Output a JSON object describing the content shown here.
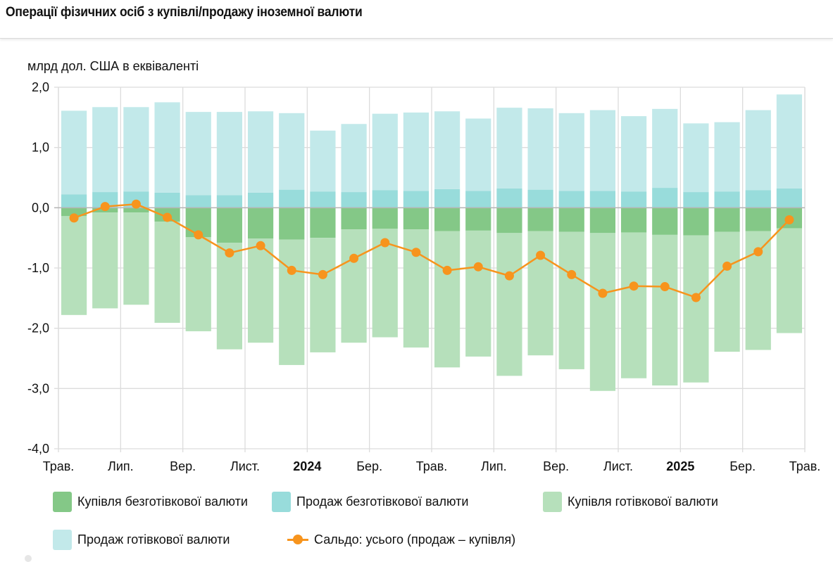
{
  "header": {
    "title": "Операції фізичних осіб з купівлі/продажу іноземної валюти"
  },
  "chart_data": {
    "type": "bar",
    "subtype": "stacked bar with line",
    "title": "Операції фізичних осіб з купівлі/продажу іноземної валюти",
    "ylabel": "млрд дол. США в еквіваленті",
    "xlabel": "",
    "ylim": [
      -4.0,
      2.0
    ],
    "yticks": [
      2.0,
      1.0,
      0.0,
      -1.0,
      -2.0,
      -3.0,
      -4.0
    ],
    "ytick_labels": [
      "2,0",
      "1,0",
      "0,0",
      "-1,0",
      "-2,0",
      "-3,0",
      "-4,0"
    ],
    "grid": true,
    "legend_position": "bottom",
    "categories": [
      "2023-05",
      "2023-06",
      "2023-07",
      "2023-08",
      "2023-09",
      "2023-10",
      "2023-11",
      "2023-12",
      "2024-01",
      "2024-02",
      "2024-03",
      "2024-04",
      "2024-05",
      "2024-06",
      "2024-07",
      "2024-08",
      "2024-09",
      "2024-10",
      "2024-11",
      "2024-12",
      "2025-01",
      "2025-02",
      "2025-03",
      "2025-04"
    ],
    "xtick_labels": [
      {
        "label": "Трав.",
        "bold": false
      },
      {
        "label": "Лип.",
        "bold": false
      },
      {
        "label": "Вер.",
        "bold": false
      },
      {
        "label": "Лист.",
        "bold": false
      },
      {
        "label": "2024",
        "bold": true
      },
      {
        "label": "Бер.",
        "bold": false
      },
      {
        "label": "Трав.",
        "bold": false
      },
      {
        "label": "Лип.",
        "bold": false
      },
      {
        "label": "Вер.",
        "bold": false
      },
      {
        "label": "Лист.",
        "bold": false
      },
      {
        "label": "2025",
        "bold": true
      },
      {
        "label": "Бер.",
        "bold": false
      },
      {
        "label": "Трав.",
        "bold": false
      }
    ],
    "series": [
      {
        "name": "Купівля безготівкової валюти",
        "kind": "bar",
        "color": "#84c887",
        "values": [
          -0.14,
          -0.08,
          -0.08,
          -0.23,
          -0.49,
          -0.58,
          -0.51,
          -0.53,
          -0.5,
          -0.36,
          -0.35,
          -0.36,
          -0.39,
          -0.38,
          -0.42,
          -0.39,
          -0.4,
          -0.42,
          -0.41,
          -0.45,
          -0.46,
          -0.4,
          -0.39,
          -0.34
        ]
      },
      {
        "name": "Продаж безготівкової валюти",
        "kind": "bar",
        "color": "#98dcdb",
        "values": [
          0.22,
          0.26,
          0.27,
          0.25,
          0.21,
          0.21,
          0.25,
          0.3,
          0.27,
          0.26,
          0.29,
          0.28,
          0.31,
          0.28,
          0.32,
          0.3,
          0.28,
          0.28,
          0.27,
          0.33,
          0.26,
          0.27,
          0.29,
          0.32
        ]
      },
      {
        "name": "Купівля готівкової валюти",
        "kind": "bar",
        "color": "#b6e0bb",
        "values": [
          -1.64,
          -1.59,
          -1.53,
          -1.68,
          -1.56,
          -1.77,
          -1.73,
          -2.08,
          -1.9,
          -1.88,
          -1.8,
          -1.96,
          -2.26,
          -2.09,
          -2.37,
          -2.06,
          -2.28,
          -2.62,
          -2.42,
          -2.5,
          -2.44,
          -1.99,
          -1.97,
          -1.74
        ]
      },
      {
        "name": "Продаж готівкової валюти",
        "kind": "bar",
        "color": "#c2e9ea",
        "values": [
          1.39,
          1.41,
          1.4,
          1.5,
          1.38,
          1.38,
          1.35,
          1.27,
          1.01,
          1.13,
          1.27,
          1.3,
          1.29,
          1.2,
          1.34,
          1.35,
          1.29,
          1.34,
          1.25,
          1.31,
          1.14,
          1.15,
          1.33,
          1.56
        ]
      },
      {
        "name": "Сальдо: усього (продаж – купівля)",
        "kind": "line",
        "color": "#f7941d",
        "values": [
          -0.17,
          0.02,
          0.06,
          -0.16,
          -0.45,
          -0.75,
          -0.63,
          -1.04,
          -1.11,
          -0.84,
          -0.58,
          -0.74,
          -1.04,
          -0.98,
          -1.13,
          -0.79,
          -1.11,
          -1.42,
          -1.3,
          -1.31,
          -1.49,
          -0.97,
          -0.73,
          -0.2
        ]
      }
    ]
  },
  "legend": {
    "items": [
      {
        "label": "Купівля безготівкової валюти",
        "color": "#84c887",
        "type": "box"
      },
      {
        "label": "Продаж безготівкової валюти",
        "color": "#98dcdb",
        "type": "box"
      },
      {
        "label": "Купівля готівкової валюти",
        "color": "#b6e0bb",
        "type": "box"
      },
      {
        "label": "Продаж готівкової валюти",
        "color": "#c2e9ea",
        "type": "box"
      },
      {
        "label": "Сальдо: усього (продаж – купівля)",
        "color": "#f7941d",
        "type": "line"
      }
    ]
  }
}
